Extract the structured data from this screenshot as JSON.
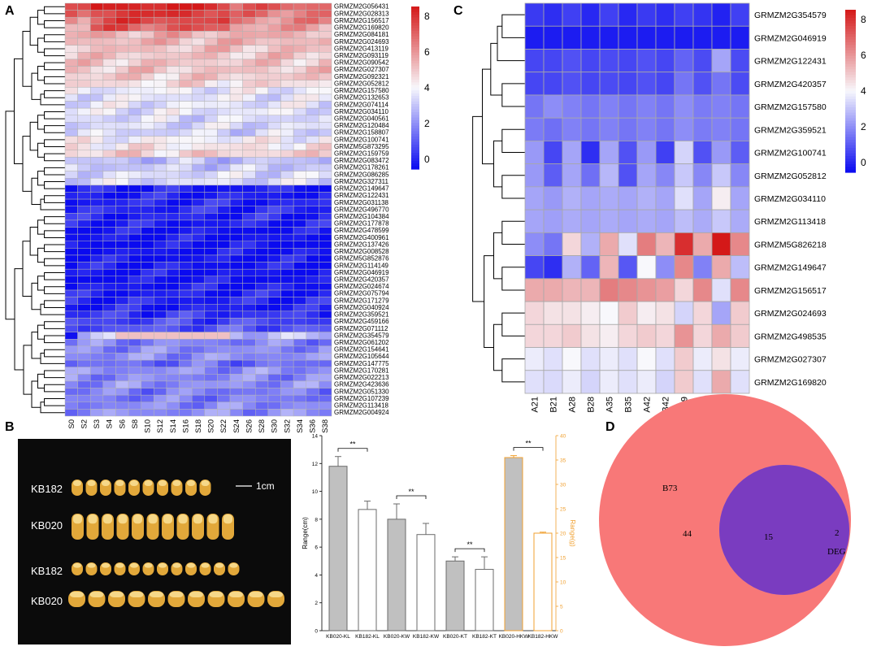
{
  "figure": {
    "panels": [
      "A",
      "B",
      "C",
      "D"
    ]
  },
  "chart_data": [
    {
      "id": "A",
      "type": "heatmap",
      "title": "",
      "columns": [
        "S0",
        "S2",
        "S3",
        "S4",
        "S6",
        "S8",
        "S10",
        "S12",
        "S14",
        "S16",
        "S18",
        "S20",
        "S22",
        "S24",
        "S26",
        "S28",
        "S30",
        "S32",
        "S34",
        "S36",
        "S38"
      ],
      "rows": [
        "GRMZM2G056431",
        "GRMZM2G028313",
        "GRMZM2G156517",
        "GRMZM2G169820",
        "GRMZM2G084181",
        "GRMZM2G024693",
        "GRMZM2G413119",
        "GRMZM2G093119",
        "GRMZM2G090542",
        "GRMZM2G027307",
        "GRMZM2G092321",
        "GRMZM2G052812",
        "GRMZM2G157580",
        "GRMZM2G132653",
        "GRMZM2G074114",
        "GRMZM2G034110",
        "GRMZM2G040561",
        "GRMZM2G120484",
        "GRMZM2G158807",
        "GRMZM2G100741",
        "GRMZM5G873295",
        "GRMZM2G159759",
        "GRMZM2G083472",
        "GRMZM2G178261",
        "GRMZM2G086285",
        "GRMZM2G327311",
        "GRMZM2G149647",
        "GRMZM2G122431",
        "GRMZM2G031138",
        "GRMZM2G496770",
        "GRMZM2G104384",
        "GRMZM2G177878",
        "GRMZM2G478599",
        "GRMZM2G400961",
        "GRMZM2G137426",
        "GRMZM2G008528",
        "GRMZM5G852876",
        "GRMZM2G114149",
        "GRMZM2G046919",
        "GRMZM2G420357",
        "GRMZM2G024674",
        "GRMZM2G075794",
        "GRMZM2G171279",
        "GRMZM2G040924",
        "GRMZM2G359521",
        "GRMZM2G459166",
        "GRMZM2G071112",
        "GRMZM2G354579",
        "GRMZM2G061202",
        "GRMZM2G154641",
        "GRMZM2G105644",
        "GRMZM2G147775",
        "GRMZM2G170281",
        "GRMZM2G022213",
        "GRMZM2G423636",
        "GRMZM2G051330",
        "GRMZM2G107239",
        "GRMZM2G113418",
        "GRMZM2G004924"
      ],
      "row_base": [
        6.7,
        6.3,
        6.0,
        5.6,
        5.3,
        5.2,
        5.0,
        4.9,
        4.9,
        4.9,
        4.8,
        4.5,
        3.8,
        3.7,
        3.7,
        3.7,
        3.5,
        3.5,
        3.4,
        4.0,
        4.3,
        4.7,
        3.0,
        3.2,
        3.5,
        3.5,
        0.3,
        0.3,
        0.4,
        0.5,
        0.4,
        0.3,
        0.1,
        0.1,
        0.1,
        0.1,
        0.1,
        0.2,
        0.1,
        0.1,
        0.2,
        0.3,
        0.4,
        0.3,
        0.7,
        1.0,
        1.2,
        3.0,
        2.0,
        2.1,
        2.2,
        1.6,
        2.2,
        2.1,
        2.2,
        1.9,
        1.9,
        2.1,
        2.2
      ],
      "colorbar": {
        "min": 0,
        "max": 8,
        "ticks": [
          "8",
          "6",
          "4",
          "2",
          "0"
        ]
      }
    },
    {
      "id": "B",
      "type": "bar",
      "categories": [
        "KB020-KL",
        "KB182-KL",
        "KB020-KW",
        "KB182-KW",
        "KB020-KT",
        "KB182-KT",
        "KB020-HKW",
        "KB182-HKW"
      ],
      "values": [
        11.8,
        8.7,
        8.0,
        6.9,
        5.0,
        4.4,
        35.5,
        20.0
      ],
      "errors": [
        0.7,
        0.6,
        1.1,
        0.8,
        0.3,
        0.9,
        0.4,
        0.2
      ],
      "axis": [
        "left",
        "left",
        "left",
        "left",
        "left",
        "left",
        "right",
        "right"
      ],
      "fill": [
        "#c0c0c0",
        "#ffffff",
        "#c0c0c0",
        "#ffffff",
        "#c0c0c0",
        "#ffffff",
        "#c0c0c0",
        "#ffffff"
      ],
      "stroke": [
        "#6b6b6b",
        "#6b6b6b",
        "#6b6b6b",
        "#6b6b6b",
        "#6b6b6b",
        "#6b6b6b",
        "#f0a030",
        "#f0a030"
      ],
      "ylabel": "Range(cm)",
      "y2label": "Range(g)",
      "ylim": [
        0,
        14
      ],
      "y2lim": [
        0,
        40
      ],
      "yticks": [
        "0",
        "2",
        "4",
        "6",
        "8",
        "10",
        "12",
        "14"
      ],
      "y2ticks": [
        "0",
        "5",
        "10",
        "15",
        "20",
        "25",
        "30",
        "35",
        "40"
      ],
      "significance": [
        {
          "pair": [
            0,
            1
          ],
          "label": "**"
        },
        {
          "pair": [
            2,
            3
          ],
          "label": "**"
        },
        {
          "pair": [
            4,
            5
          ],
          "label": "**"
        },
        {
          "pair": [
            6,
            7
          ],
          "label": "**"
        }
      ]
    },
    {
      "id": "C",
      "type": "heatmap",
      "columns": [
        "A21",
        "B21",
        "A28",
        "B28",
        "A35",
        "B35",
        "A42",
        "B42",
        "A49",
        "B49",
        "A56",
        "B56"
      ],
      "rows": [
        "GRMZM2G354579",
        "GRMZM2G046919",
        "GRMZM2G122431",
        "GRMZM2G420357",
        "GRMZM2G157580",
        "GRMZM2G359521",
        "GRMZM2G100741",
        "GRMZM2G052812",
        "GRMZM2G034110",
        "GRMZM2G113418",
        "GRMZM5G826218",
        "GRMZM2G149647",
        "GRMZM2G156517",
        "GRMZM2G024693",
        "GRMZM2G498535",
        "GRMZM2G027307",
        "GRMZM2G169820"
      ],
      "values": [
        [
          0.8,
          0.6,
          0.9,
          0.5,
          0.9,
          0.5,
          0.8,
          0.6,
          0.9,
          0.7,
          0.4,
          0.9
        ],
        [
          0.3,
          0.3,
          0.3,
          0.3,
          0.3,
          0.3,
          0.3,
          0.3,
          0.3,
          0.3,
          0.3,
          0.3
        ],
        [
          1.0,
          1.0,
          1.2,
          1.0,
          1.1,
          1.0,
          1.2,
          1.0,
          1.5,
          1.1,
          2.6,
          1.1
        ],
        [
          1.0,
          1.0,
          1.2,
          1.0,
          1.1,
          1.0,
          1.2,
          1.0,
          1.8,
          1.2,
          1.8,
          1.1
        ],
        [
          1.8,
          2.2,
          2.0,
          1.8,
          2.0,
          1.8,
          2.0,
          1.8,
          2.2,
          1.9,
          2.0,
          1.8
        ],
        [
          1.9,
          1.7,
          2.0,
          1.8,
          2.0,
          1.8,
          2.0,
          1.8,
          2.2,
          1.9,
          2.0,
          1.8
        ],
        [
          2.4,
          1.0,
          2.6,
          0.6,
          2.6,
          1.2,
          2.4,
          0.9,
          3.4,
          1.2,
          2.4,
          1.4
        ],
        [
          2.4,
          1.4,
          2.6,
          1.7,
          2.9,
          1.2,
          2.6,
          2.1,
          3.2,
          2.1,
          3.2,
          2.1
        ],
        [
          2.6,
          2.4,
          2.8,
          2.6,
          2.7,
          2.6,
          2.8,
          2.6,
          3.6,
          2.6,
          4.2,
          2.6
        ],
        [
          2.6,
          2.5,
          2.7,
          2.6,
          2.7,
          2.6,
          2.7,
          2.6,
          3.0,
          2.7,
          3.2,
          2.7
        ],
        [
          2.2,
          1.8,
          4.6,
          2.8,
          5.4,
          3.6,
          6.2,
          5.2,
          7.6,
          5.4,
          8.0,
          6.0
        ],
        [
          1.0,
          0.6,
          2.8,
          1.5,
          5.2,
          1.3,
          4.0,
          2.2,
          6.0,
          2.0,
          5.4,
          3.0
        ],
        [
          5.4,
          5.4,
          5.2,
          5.2,
          6.2,
          6.0,
          5.8,
          5.6,
          4.6,
          6.0,
          3.6,
          6.0
        ],
        [
          4.6,
          4.4,
          4.4,
          4.2,
          4.0,
          4.8,
          4.2,
          4.4,
          3.4,
          4.6,
          2.6,
          4.8
        ],
        [
          4.6,
          4.6,
          4.8,
          4.4,
          4.2,
          4.6,
          4.8,
          4.6,
          5.8,
          4.6,
          5.4,
          4.8
        ],
        [
          3.8,
          3.6,
          4.0,
          3.6,
          3.8,
          3.6,
          4.0,
          3.6,
          4.8,
          3.8,
          4.4,
          3.8
        ],
        [
          3.6,
          3.5,
          3.8,
          3.4,
          3.8,
          3.6,
          3.8,
          3.4,
          4.8,
          3.6,
          5.4,
          3.6
        ]
      ],
      "colorbar": {
        "min": 0,
        "max": 8,
        "ticks": [
          "8",
          "6",
          "4",
          "2",
          "0"
        ]
      }
    },
    {
      "id": "D",
      "type": "venn",
      "sets": [
        {
          "name": "B73",
          "only": "44"
        },
        {
          "name": "DEG",
          "only": "2"
        }
      ],
      "intersection": "15",
      "colors": [
        "#f87878",
        "#7070f0",
        "#7a3cc0"
      ]
    }
  ],
  "photo": {
    "labels": [
      "KB182",
      "KB020",
      "KB182",
      "KB020"
    ],
    "scale": "1cm"
  }
}
